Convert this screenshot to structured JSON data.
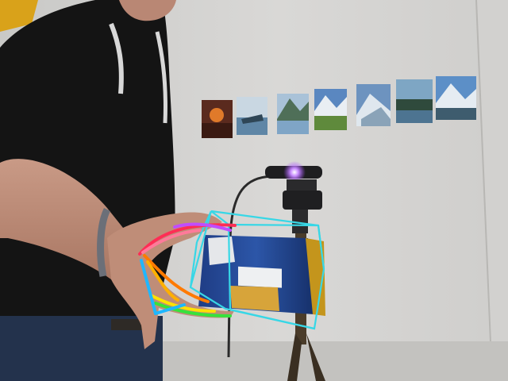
{
  "scene": {
    "description_hidden": false,
    "wall_photos": [
      {
        "name": "sunset-photo",
        "colors": [
          "#e07a2a",
          "#5a2a1e"
        ]
      },
      {
        "name": "boat-photo",
        "colors": [
          "#5f86a6",
          "#c9d7e2"
        ]
      },
      {
        "name": "mountain-lake-photo",
        "colors": [
          "#7fa5c6",
          "#4f6f58"
        ]
      },
      {
        "name": "alpine-meadow-photo",
        "colors": [
          "#5a87c0",
          "#5f8a3c"
        ]
      },
      {
        "name": "glacier-photo",
        "colors": [
          "#6d93bf",
          "#dfe7ee"
        ]
      },
      {
        "name": "forest-lake-photo",
        "colors": [
          "#7ea6c4",
          "#2f4a3c"
        ]
      },
      {
        "name": "snow-peak-photo",
        "colors": [
          "#5c8fc7",
          "#3e5c6e"
        ]
      }
    ],
    "overlay": {
      "box_color": "#37d7e6",
      "hand_joint_colors": [
        "#ff2d55",
        "#ff7a00",
        "#ffe100",
        "#37e23c",
        "#1fb7ff",
        "#c04dff"
      ]
    },
    "camera_led_color": "#a64dff"
  }
}
